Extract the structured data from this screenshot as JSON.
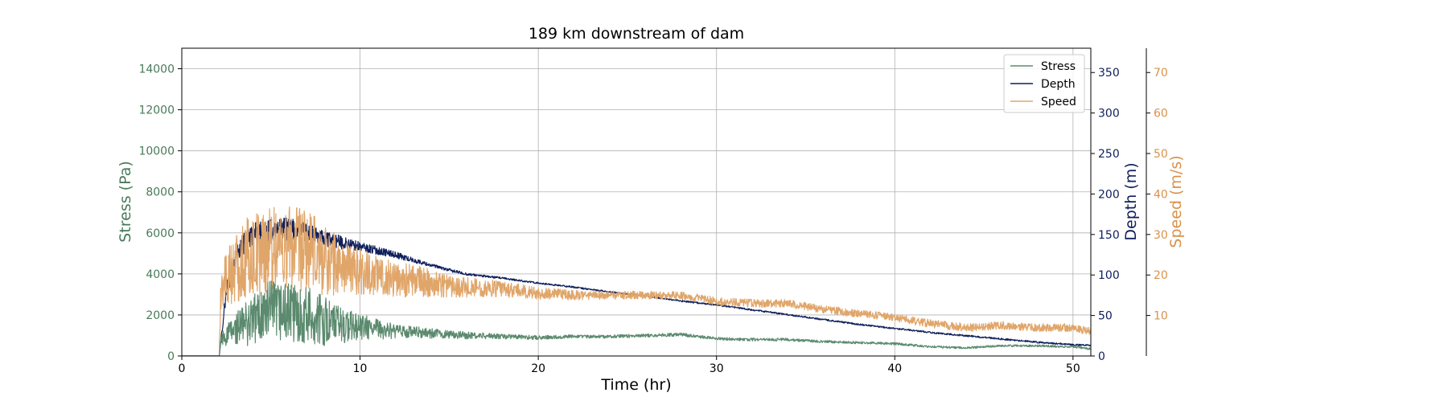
{
  "chart_data": {
    "type": "line",
    "title": "189 km downstream of dam",
    "xlabel": "Time (hr)",
    "xlim": [
      0,
      51
    ],
    "xticks": [
      0,
      10,
      20,
      30,
      40,
      50
    ],
    "grid": true,
    "legend_position": "top-right",
    "axes": {
      "stress": {
        "label": "Stress (Pa)",
        "color": "#4a7a5a",
        "ylim": [
          0,
          15000
        ],
        "ticks": [
          0,
          2000,
          4000,
          6000,
          8000,
          10000,
          12000,
          14000
        ]
      },
      "depth": {
        "label": "Depth (m)",
        "color": "#0f1f5c",
        "ylim": [
          0,
          380
        ],
        "ticks": [
          0,
          50,
          100,
          150,
          200,
          250,
          300,
          350
        ]
      },
      "speed": {
        "label": "Speed (m/s)",
        "color": "#d9924a",
        "ylim": [
          0,
          76
        ],
        "ticks": [
          10,
          20,
          30,
          40,
          50,
          60,
          70
        ]
      }
    },
    "series": [
      {
        "name": "Stress",
        "axis": "stress",
        "color": "#5b8a6e",
        "x": [
          0,
          2.1,
          2.2,
          3,
          4,
          5,
          6,
          7,
          8,
          9,
          10,
          11,
          12,
          13,
          14,
          15,
          16,
          18,
          20,
          22,
          24,
          26,
          28,
          30,
          32,
          34,
          36,
          38,
          40,
          42,
          44,
          46,
          48,
          50,
          51
        ],
        "y": [
          0,
          0,
          800,
          1300,
          1800,
          2200,
          2100,
          2000,
          1700,
          1500,
          1400,
          1300,
          1200,
          1150,
          1100,
          1050,
          1000,
          950,
          900,
          950,
          950,
          1000,
          1050,
          850,
          800,
          800,
          700,
          650,
          600,
          450,
          400,
          500,
          500,
          450,
          350
        ],
        "noise": [
          0,
          0,
          400,
          800,
          1300,
          1500,
          1500,
          1400,
          1200,
          900,
          650,
          500,
          350,
          300,
          250,
          200,
          180,
          120,
          100,
          80,
          80,
          80,
          80,
          70,
          70,
          70,
          60,
          60,
          60,
          50,
          50,
          50,
          50,
          50,
          50
        ]
      },
      {
        "name": "Depth",
        "axis": "depth",
        "color": "#0f1f5c",
        "x": [
          0,
          2.1,
          2.5,
          3,
          3.5,
          4,
          5,
          6,
          7,
          8,
          9,
          10,
          11,
          12,
          13,
          14,
          15,
          16,
          18,
          20,
          22,
          24,
          26,
          28,
          30,
          32,
          34,
          36,
          38,
          40,
          42,
          44,
          46,
          48,
          50,
          51
        ],
        "y": [
          0,
          0,
          80,
          120,
          140,
          150,
          155,
          157,
          152,
          145,
          140,
          135,
          130,
          125,
          118,
          112,
          106,
          101,
          96,
          90,
          85,
          79,
          74,
          68,
          63,
          57,
          51,
          45,
          39,
          34,
          29,
          25,
          21,
          17,
          14,
          13
        ],
        "noise": [
          0,
          0,
          10,
          12,
          14,
          14,
          14,
          14,
          12,
          10,
          8,
          6,
          5,
          4,
          3,
          2,
          2,
          1.5,
          1.2,
          1,
          1,
          1,
          1,
          1,
          1,
          1,
          1,
          1,
          1,
          1,
          1,
          1,
          1,
          1,
          1,
          1
        ]
      },
      {
        "name": "Speed",
        "axis": "speed",
        "color": "#e0a569",
        "x": [
          0,
          2.1,
          2.2,
          3,
          4,
          5,
          6,
          7,
          8,
          9,
          10,
          11,
          12,
          13,
          14,
          15,
          16,
          18,
          20,
          22,
          24,
          26,
          28,
          30,
          32,
          34,
          36,
          38,
          40,
          42,
          44,
          46,
          48,
          50,
          51
        ],
        "y": [
          0,
          0,
          18,
          22,
          25,
          27,
          27,
          26,
          24,
          22,
          21,
          20,
          19,
          18.5,
          18,
          17.5,
          17,
          16.5,
          15.5,
          15,
          15,
          15,
          15,
          13.5,
          13,
          13,
          11.5,
          10.5,
          9.5,
          8,
          7,
          7.5,
          7,
          7,
          6
        ],
        "noise": [
          0,
          0,
          6,
          9,
          11,
          11,
          11,
          10,
          9,
          7,
          6,
          5,
          4.5,
          4,
          3.5,
          3,
          2.5,
          2,
          1.5,
          1.2,
          1,
          1,
          1,
          1,
          1,
          1,
          1,
          1,
          1,
          1,
          1,
          1,
          1,
          1,
          1
        ]
      }
    ]
  }
}
